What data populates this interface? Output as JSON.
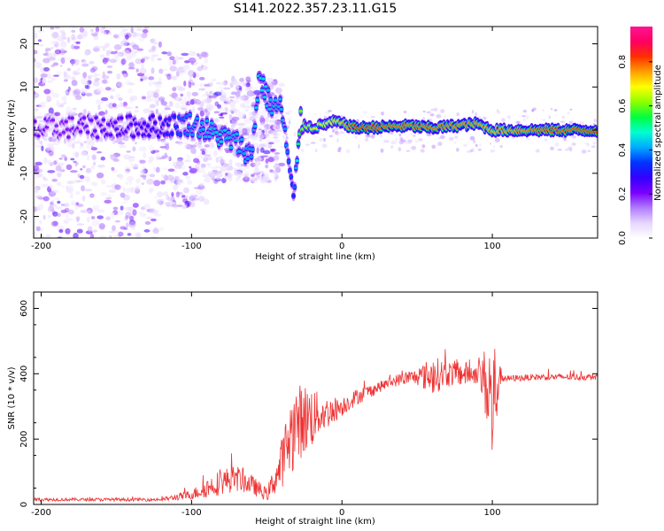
{
  "title": "S141.2022.357.23.11.G15",
  "chart_data": [
    {
      "type": "heatmap",
      "xlabel": "Height of straight line (km)",
      "ylabel": "Frequency (Hz)",
      "xlim": [
        -205,
        170
      ],
      "ylim": [
        -25,
        24
      ],
      "xticks": [
        -200,
        -100,
        0,
        100
      ],
      "yticks": [
        -20,
        -10,
        0,
        10,
        20
      ],
      "colorbar": {
        "label": "Normalized spectral amplitude",
        "range": [
          0,
          0.96
        ],
        "ticks": [
          "0.0",
          "0.2",
          "0.4",
          "0.6",
          "0.8"
        ],
        "colormap": [
          "#ffffff",
          "#e6d6ff",
          "#b07cff",
          "#7a00ff",
          "#3300ff",
          "#0033ff",
          "#00aaff",
          "#00ffd0",
          "#00ff40",
          "#8cff00",
          "#ffff00",
          "#ffa000",
          "#ff3000",
          "#ff0060",
          "#ff1493"
        ]
      },
      "ridge": [
        {
          "x": -200,
          "f": 0.0,
          "a": 0.22
        },
        {
          "x": -190,
          "f": 0.6,
          "a": 0.2
        },
        {
          "x": -120,
          "f": 1.0,
          "a": 0.3
        },
        {
          "x": -100,
          "f": 1.5,
          "a": 0.42
        },
        {
          "x": -90,
          "f": 0.0,
          "a": 0.45
        },
        {
          "x": -80,
          "f": -1.5,
          "a": 0.48
        },
        {
          "x": -70,
          "f": -3.0,
          "a": 0.45
        },
        {
          "x": -60,
          "f": -6.0,
          "a": 0.42
        },
        {
          "x": -55,
          "f": 13.0,
          "a": 0.5
        },
        {
          "x": -48,
          "f": 6.0,
          "a": 0.45
        },
        {
          "x": -40,
          "f": 5.0,
          "a": 0.45
        },
        {
          "x": -32,
          "f": -17.0,
          "a": 0.35
        },
        {
          "x": -28,
          "f": 2.0,
          "a": 0.62
        },
        {
          "x": -20,
          "f": 0.5,
          "a": 0.7
        },
        {
          "x": -5,
          "f": 2.0,
          "a": 0.72
        },
        {
          "x": 10,
          "f": 0.5,
          "a": 0.85
        },
        {
          "x": 45,
          "f": 1.0,
          "a": 0.82
        },
        {
          "x": 60,
          "f": 0.5,
          "a": 0.82
        },
        {
          "x": 90,
          "f": 1.5,
          "a": 0.8
        },
        {
          "x": 100,
          "f": 0.0,
          "a": 0.78
        },
        {
          "x": 130,
          "f": 0.0,
          "a": 0.82
        },
        {
          "x": 170,
          "f": 0.0,
          "a": 0.85
        }
      ]
    },
    {
      "type": "line",
      "xlabel": "Height of straight line (km)",
      "ylabel": "SNR (10 * v/v)",
      "xlim": [
        -205,
        170
      ],
      "ylim": [
        0,
        650
      ],
      "xticks": [
        -200,
        -100,
        0,
        100
      ],
      "yticks": [
        0,
        200,
        400,
        600
      ],
      "color": "#ee3333",
      "x": [
        -205,
        -180,
        -150,
        -120,
        -100,
        -90,
        -80,
        -70,
        -60,
        -50,
        -42,
        -35,
        -30,
        -25,
        -20,
        -15,
        -10,
        -5,
        0,
        10,
        20,
        30,
        40,
        50,
        60,
        70,
        80,
        90,
        95,
        100,
        105,
        110,
        130,
        150,
        170
      ],
      "y": [
        15,
        15,
        15,
        15,
        30,
        50,
        70,
        80,
        60,
        30,
        100,
        200,
        250,
        260,
        270,
        275,
        280,
        290,
        300,
        330,
        350,
        370,
        385,
        390,
        395,
        400,
        400,
        400,
        380,
        300,
        395,
        385,
        390,
        390,
        390
      ],
      "noise": [
        5,
        5,
        5,
        5,
        15,
        30,
        40,
        40,
        30,
        20,
        60,
        120,
        120,
        110,
        100,
        60,
        50,
        40,
        30,
        25,
        20,
        15,
        20,
        25,
        60,
        40,
        40,
        30,
        100,
        250,
        30,
        10,
        10,
        10,
        10
      ]
    }
  ]
}
